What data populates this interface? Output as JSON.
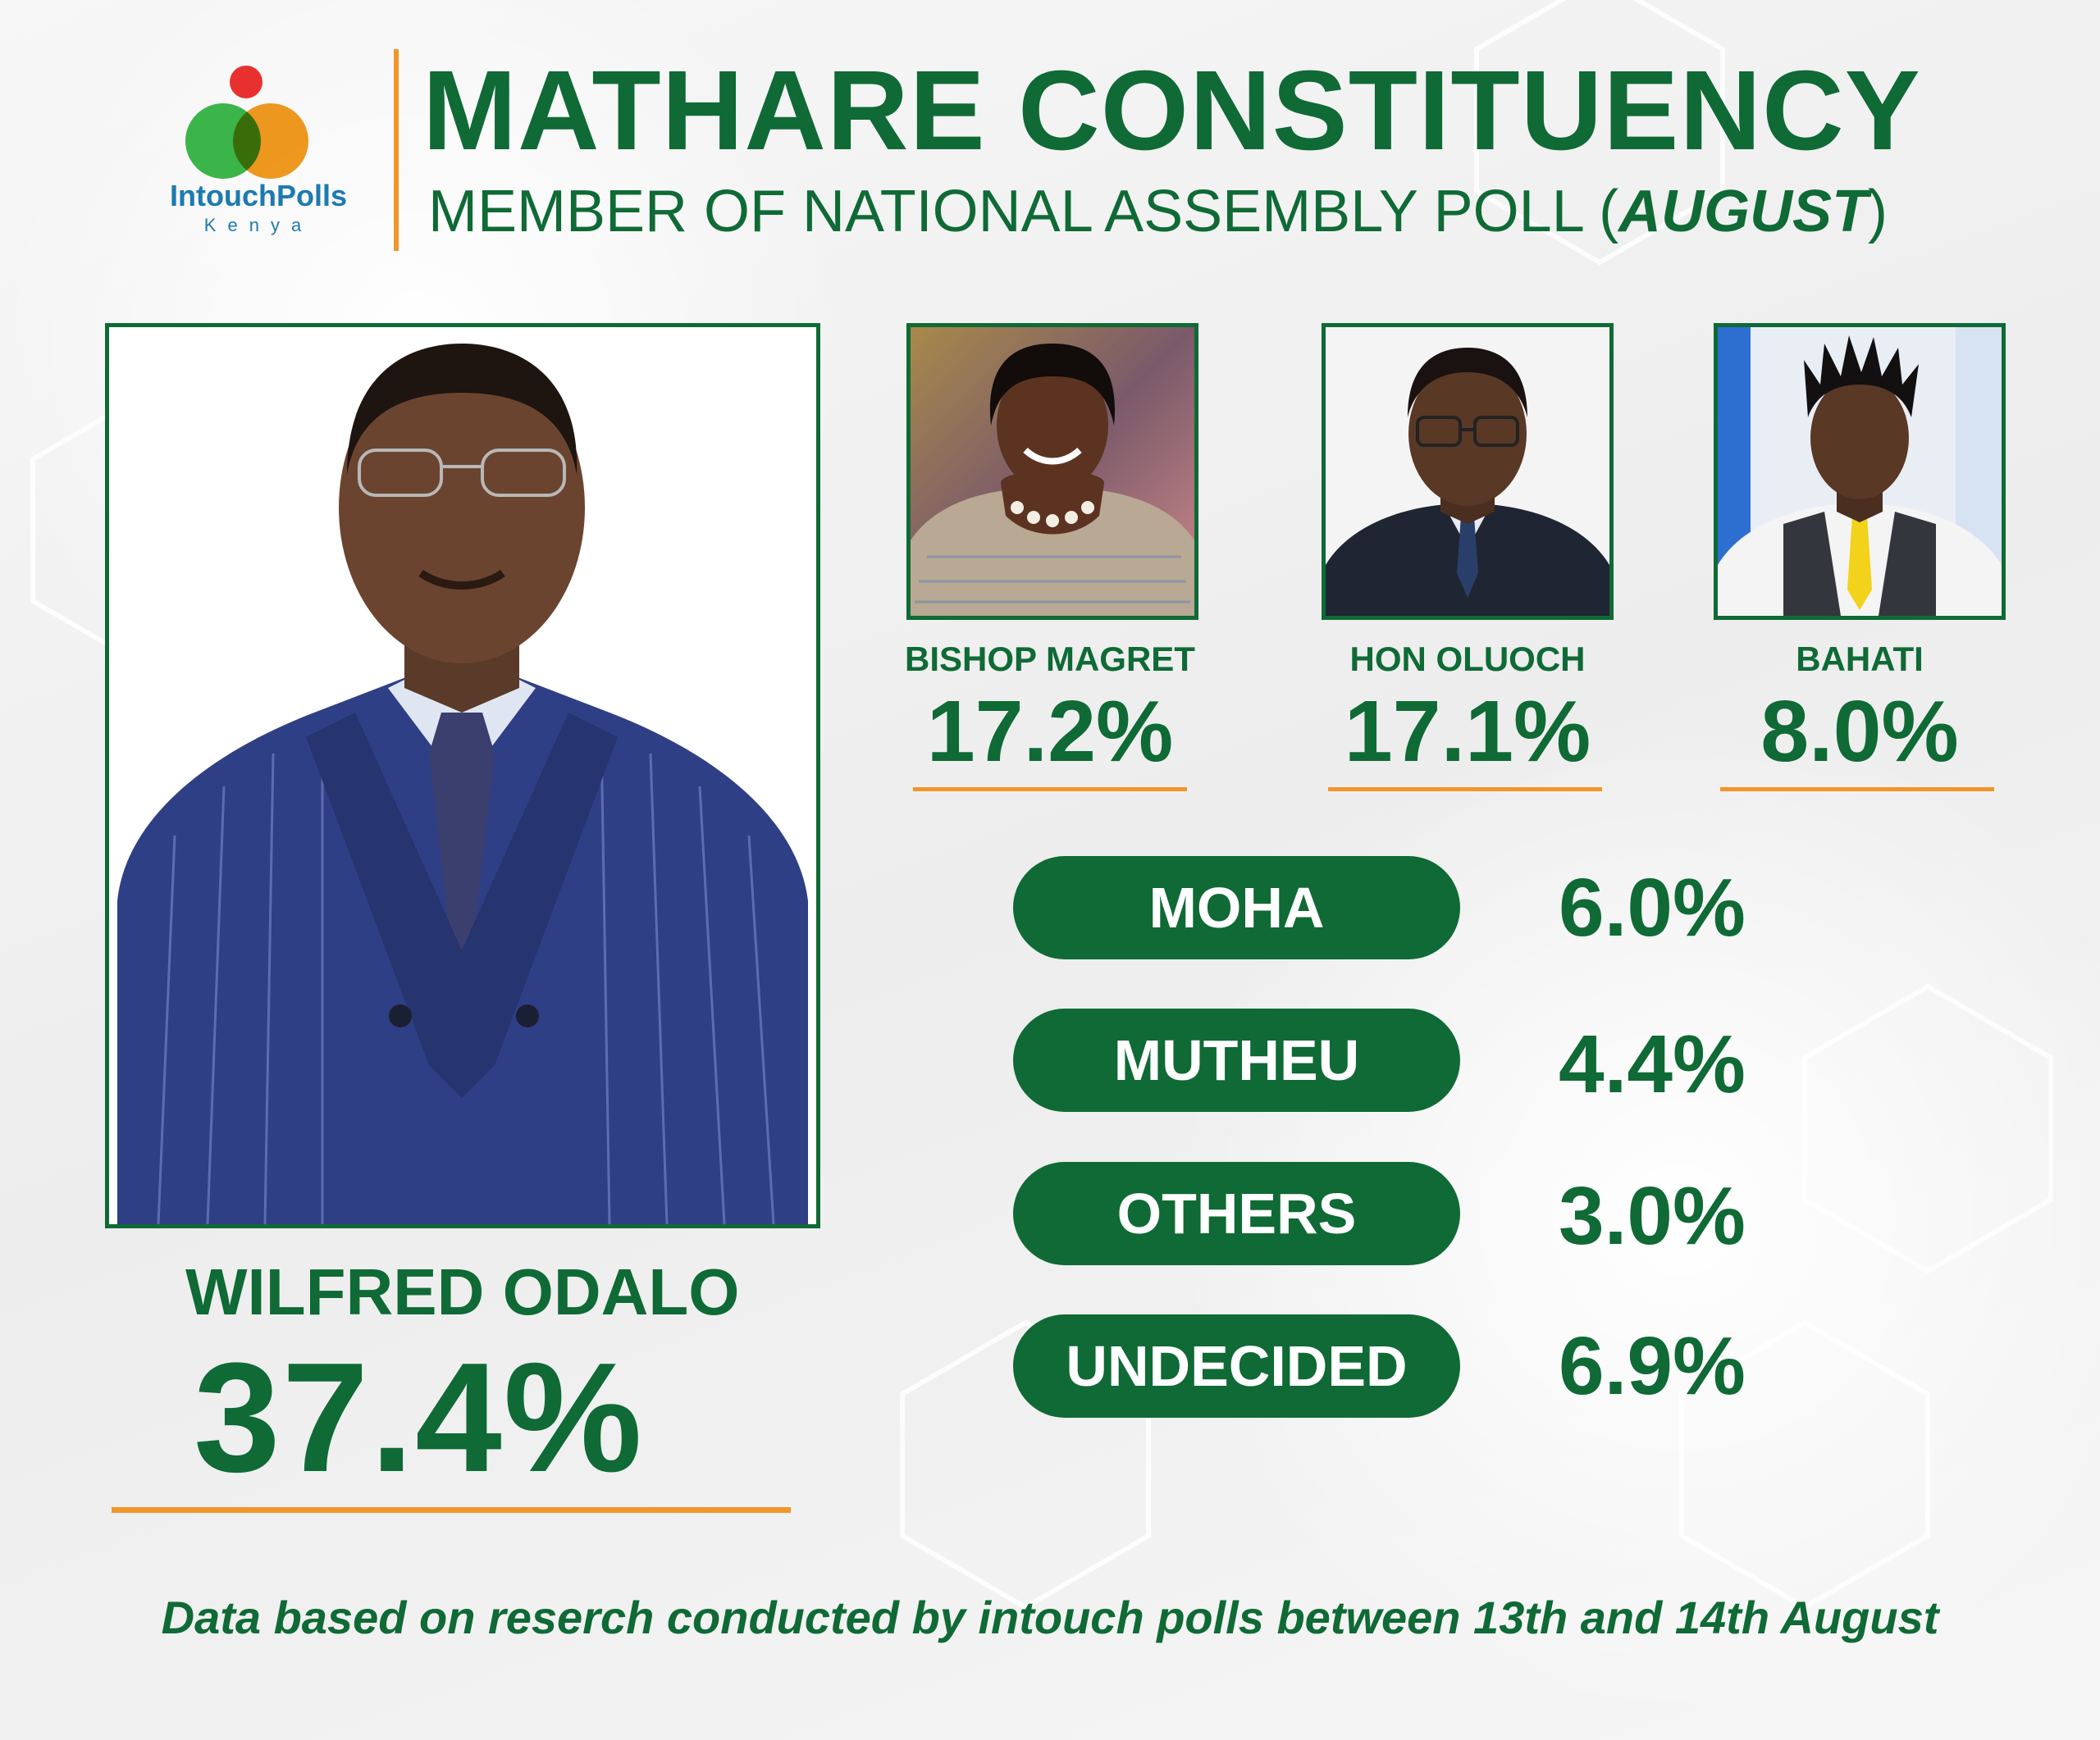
{
  "brand": {
    "name": "IntouchPolls",
    "sub": "Kenya"
  },
  "header": {
    "title": "MATHARE CONSTITUENCY",
    "subtitle_prefix": "MEMBER OF NATIONAL ASSEMBLY POLL (",
    "subtitle_month": "AUGUST",
    "subtitle_suffix": ")"
  },
  "leader": {
    "name": "WILFRED ODALO",
    "percent": "37.4%"
  },
  "candidates": [
    {
      "name": "BISHOP MAGRET",
      "percent": "17.2%"
    },
    {
      "name": "HON OLUOCH",
      "percent": "17.1%"
    },
    {
      "name": "BAHATI",
      "percent": "8.0%"
    }
  ],
  "others": [
    {
      "label": "MOHA",
      "percent": "6.0%"
    },
    {
      "label": "MUTHEU",
      "percent": "4.4%"
    },
    {
      "label": "OTHERS",
      "percent": "3.0%"
    },
    {
      "label": "UNDECIDED",
      "percent": "6.9%"
    }
  ],
  "footer": "Data based on reserch conducted by intouch polls between 13th and 14th August",
  "colors": {
    "green": "#0f6a35",
    "orange": "#f0962a",
    "logo_red": "#e8312f",
    "logo_green": "#3bb44a",
    "logo_orange": "#f39b1f",
    "logo_blue": "#1c7ab0"
  }
}
